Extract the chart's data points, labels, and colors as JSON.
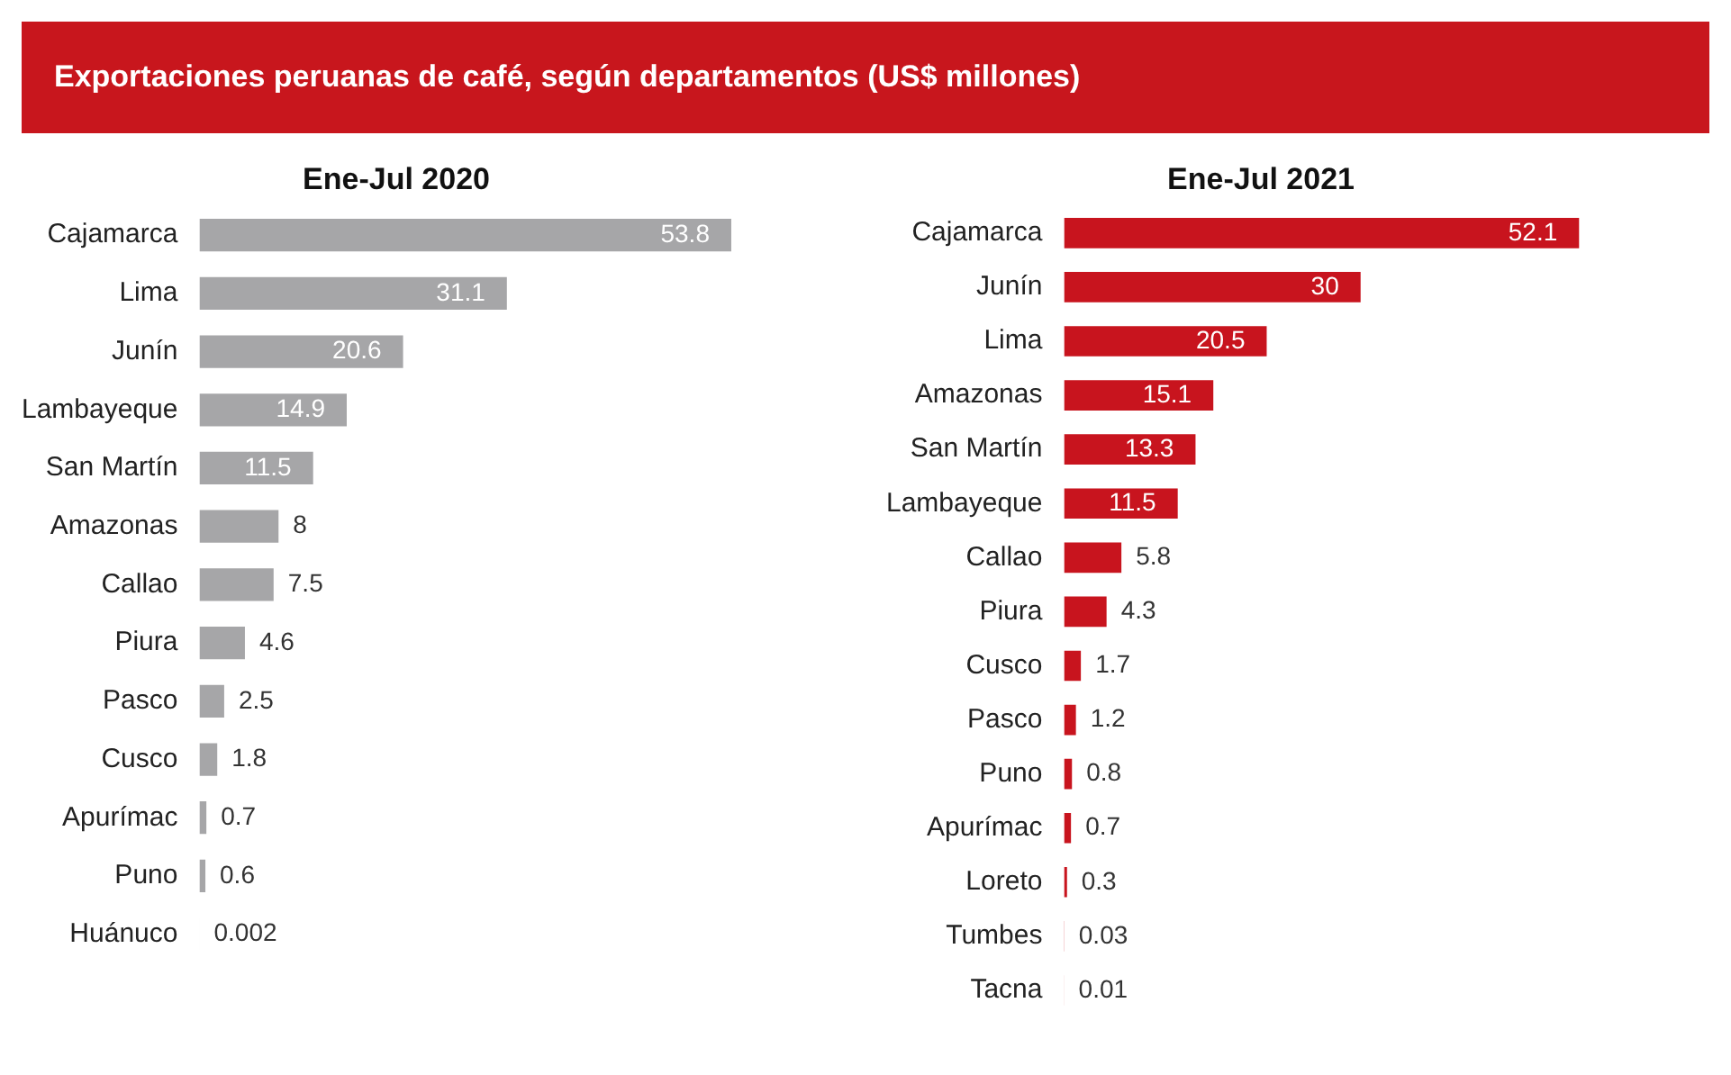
{
  "chart_data": [
    {
      "type": "bar",
      "title": "Exportaciones peruanas de café, según departamentos (US$ millones)",
      "subtitle": "Ene-Jul 2020",
      "orientation": "horizontal",
      "categories": [
        "Cajamarca",
        "Lima",
        "Junín",
        "Lambayeque",
        "San Martín",
        "Amazonas",
        "Callao",
        "Piura",
        "Pasco",
        "Cusco",
        "Apurímac",
        "Puno",
        "Huánuco"
      ],
      "values": [
        53.8,
        31.1,
        20.6,
        14.9,
        11.5,
        8,
        7.5,
        4.6,
        2.5,
        1.8,
        0.7,
        0.6,
        0.002
      ],
      "color": "#a6a6a8",
      "data_labels": true,
      "tick_labels": "y"
    },
    {
      "type": "bar",
      "title": "Ene-Jul 2021",
      "orientation": "horizontal",
      "categories": [
        "Cajamarca",
        "Junín",
        "Lima",
        "Amazonas",
        "San Martín",
        "Lambayeque",
        "Callao",
        "Piura",
        "Cusco",
        "Pasco",
        "Puno",
        "Apurímac",
        "Loreto",
        "Tumbes",
        "Tacna"
      ],
      "values": [
        52.1,
        30,
        20.5,
        15.1,
        13.3,
        11.5,
        5.8,
        4.3,
        1.7,
        1.2,
        0.8,
        0.7,
        0.3,
        0.03,
        0.01
      ],
      "color": "#c8141e",
      "data_labels": true,
      "tick_labels": "y"
    }
  ]
}
